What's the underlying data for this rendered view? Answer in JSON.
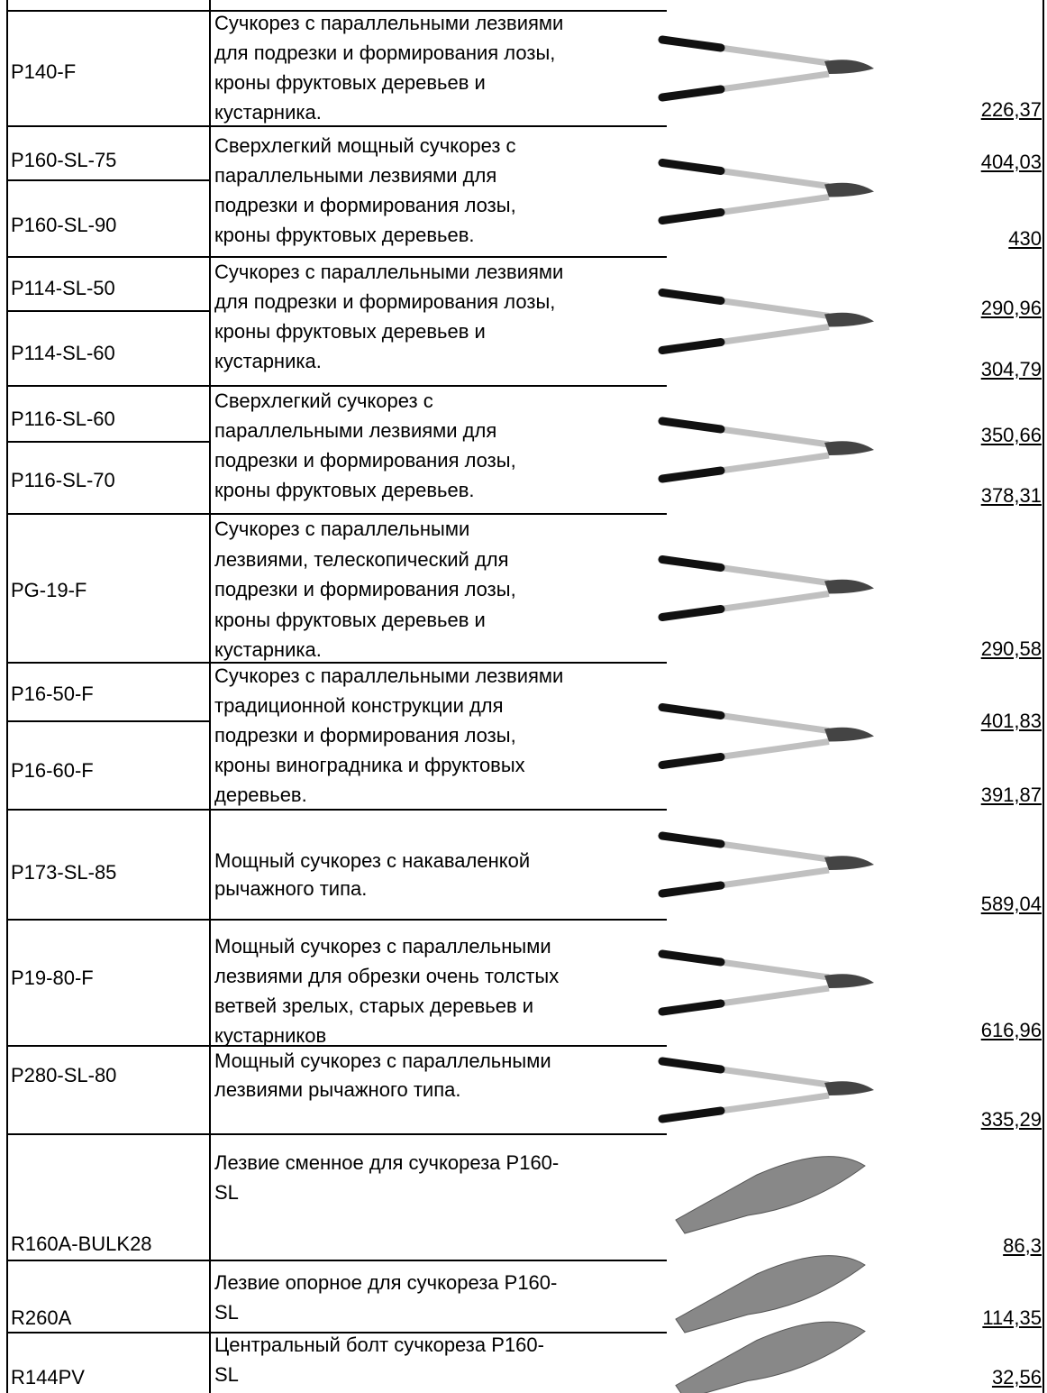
{
  "rows": [
    {
      "codes": [
        "P140-F"
      ],
      "prices": [
        "226,37"
      ],
      "description": [
        "Сучкорез с параллельными лезвиями",
        "для подрезки и формирования лозы,",
        "кроны фруктовых деревьев и",
        "кустарника."
      ]
    },
    {
      "codes": [
        "P160-SL-75",
        "P160-SL-90"
      ],
      "prices": [
        "404,03",
        "430"
      ],
      "description": [
        "Сверхлегкий мощный сучкорез с",
        "параллельными лезвиями для",
        "подрезки и формирования лозы,",
        "кроны фруктовых деревьев."
      ]
    },
    {
      "codes": [
        "P114-SL-50",
        "P114-SL-60"
      ],
      "prices": [
        "290,96",
        "304,79"
      ],
      "description": [
        "Сучкорез с параллельными лезвиями",
        "для подрезки и формирования лозы,",
        "кроны фруктовых деревьев и",
        "кустарника."
      ]
    },
    {
      "codes": [
        "P116-SL-60",
        "P116-SL-70"
      ],
      "prices": [
        "350,66",
        "378,31"
      ],
      "description": [
        "Сверхлегкий сучкорез с",
        "параллельными лезвиями для",
        "подрезки и формирования лозы,",
        "кроны фруктовых деревьев."
      ]
    },
    {
      "codes": [
        "PG-19-F"
      ],
      "prices": [
        "290,58"
      ],
      "description": [
        "Сучкорез с параллельными",
        "лезвиями, телескопический для",
        "подрезки и формирования лозы,",
        "кроны фруктовых деревьев и",
        "кустарника."
      ]
    },
    {
      "codes": [
        "P16-50-F",
        "P16-60-F"
      ],
      "prices": [
        "401,83",
        "391,87"
      ],
      "description": [
        "Сучкорез с параллельными лезвиями",
        "традиционной конструкции для",
        "подрезки и формирования лозы,",
        "кроны виноградника и фруктовых",
        "деревьев."
      ]
    },
    {
      "codes": [
        "P173-SL-85"
      ],
      "prices": [
        "589,04"
      ],
      "description": [
        "Мощный сучкорез с накаваленкой",
        "рычажного типа."
      ]
    },
    {
      "codes": [
        "P19-80-F"
      ],
      "prices": [
        "616,96"
      ],
      "description": [
        "Мощный сучкорез с параллельными",
        "лезвиями для обрезки очень толстых",
        "ветвей зрелых, старых деревьев и",
        "кустарников"
      ]
    },
    {
      "codes": [
        "P280-SL-80"
      ],
      "prices": [
        "335,29"
      ],
      "description": [
        "Мощный сучкорез с параллельными",
        "лезвиями рычажного типа."
      ]
    },
    {
      "codes": [
        "R160A-BULK28"
      ],
      "prices": [
        "86,3"
      ],
      "description": [
        "Лезвие сменное для сучкореза P160-",
        "SL"
      ]
    },
    {
      "codes": [
        "R260A"
      ],
      "prices": [
        "114,35"
      ],
      "description": [
        "Лезвие опорное для сучкореза P160-",
        "SL"
      ]
    },
    {
      "codes": [
        "R144PV"
      ],
      "prices": [
        "32,56"
      ],
      "description": [
        "Центральный болт сучкореза P160-",
        "SL"
      ]
    }
  ]
}
